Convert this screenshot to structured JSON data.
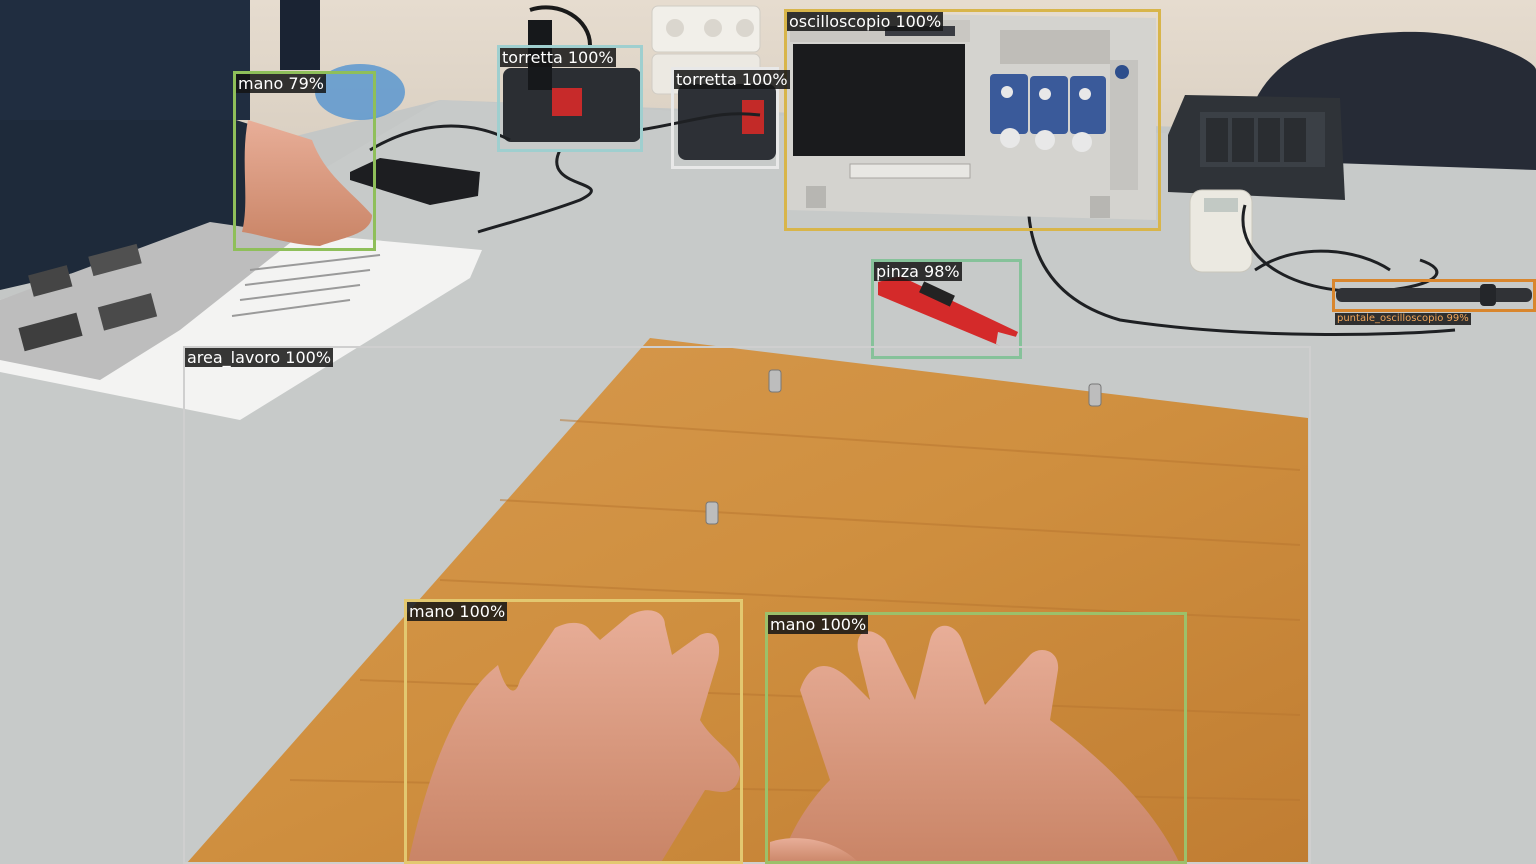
{
  "detections": [
    {
      "id": "oscilloscope",
      "label": "oscilloscopio 100%",
      "color": "#d8b54a"
    },
    {
      "id": "turret-1",
      "label": "torretta 100%",
      "color": "#9fcfcf"
    },
    {
      "id": "turret-2",
      "label": "torretta 100%",
      "color": "#e8e8e8"
    },
    {
      "id": "hand-top",
      "label": "mano 79%",
      "color": "#8fbf5a"
    },
    {
      "id": "pliers",
      "label": "pinza 98%",
      "color": "#86c29a"
    },
    {
      "id": "probe",
      "label": "puntale_oscilloscopio 99%",
      "color": "#d9862d"
    },
    {
      "id": "work-area",
      "label": "area_lavoro 100%",
      "color": "#cfcfcf"
    },
    {
      "id": "hand-left",
      "label": "mano 100%",
      "color": "#e3c870"
    },
    {
      "id": "hand-right",
      "label": "mano 100%",
      "color": "#9cc06a"
    }
  ]
}
